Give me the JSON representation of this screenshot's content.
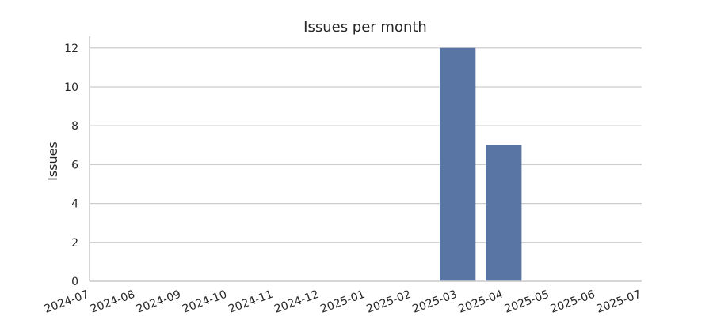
{
  "chart_data": {
    "type": "bar",
    "title": "Issues per month",
    "xlabel": "",
    "ylabel": "Issues",
    "categories": [
      "2024-07",
      "2024-08",
      "2024-09",
      "2024-10",
      "2024-11",
      "2024-12",
      "2025-01",
      "2025-02",
      "2025-03",
      "2025-04",
      "2025-05",
      "2025-06",
      "2025-07"
    ],
    "values": [
      0,
      0,
      0,
      0,
      0,
      0,
      0,
      0,
      12,
      7,
      0,
      0,
      0
    ],
    "ylim": [
      0,
      12.6
    ],
    "yticks": [
      0,
      2,
      4,
      6,
      8,
      10,
      12
    ],
    "grid": "horizontal",
    "bar_color": "#5975a4"
  }
}
